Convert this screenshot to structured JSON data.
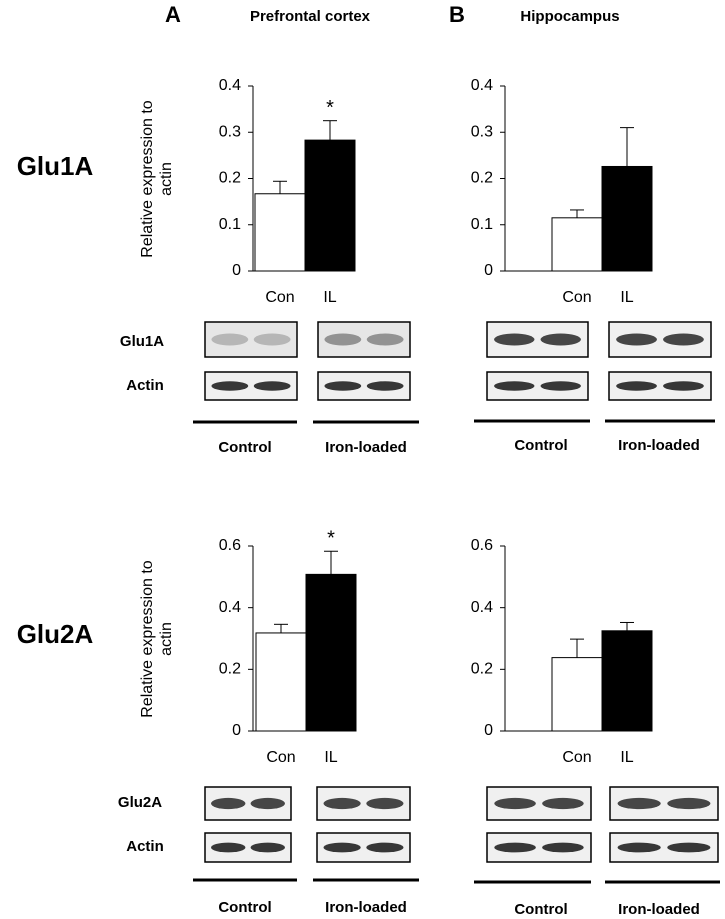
{
  "panels": [
    {
      "letter": "A",
      "title": "Prefrontal cortex"
    },
    {
      "letter": "B",
      "title": "Hippocampus"
    }
  ],
  "row_labels": [
    "Glu1A",
    "Glu2A"
  ],
  "blot_labels": [
    [
      "Glu1A",
      "Actin"
    ],
    [
      "Glu2A",
      "Actin"
    ]
  ],
  "group_labels": [
    [
      "Control",
      "Iron-loaded"
    ],
    [
      "Control",
      "Iron-loaded"
    ],
    [
      "Control",
      "Iron-loaded"
    ],
    [
      "Control",
      "Iron-loaded"
    ]
  ],
  "chart_data": [
    {
      "type": "bar",
      "ylabel": "Relative expression to actin",
      "categories": [
        "Con",
        "IL"
      ],
      "values": [
        0.167,
        0.283
      ],
      "errors": [
        0.027,
        0.042
      ],
      "colors": [
        "#ffffff",
        "#000000"
      ],
      "ylim": [
        0,
        0.4
      ],
      "yticks": [
        0,
        0.1,
        0.2,
        0.3,
        0.4
      ],
      "annotations": [
        {
          "text": "*",
          "x": "IL"
        }
      ]
    },
    {
      "type": "bar",
      "categories": [
        "Con",
        "IL"
      ],
      "values": [
        0.115,
        0.226
      ],
      "errors": [
        0.017,
        0.084
      ],
      "colors": [
        "#ffffff",
        "#000000"
      ],
      "ylim": [
        0,
        0.4
      ],
      "yticks": [
        0,
        0.1,
        0.2,
        0.3,
        0.4
      ]
    },
    {
      "type": "bar",
      "ylabel": "Relative expression to actin",
      "categories": [
        "Con",
        "IL"
      ],
      "values": [
        0.318,
        0.508
      ],
      "errors": [
        0.028,
        0.075
      ],
      "colors": [
        "#ffffff",
        "#000000"
      ],
      "ylim": [
        0,
        0.6
      ],
      "yticks": [
        0,
        0.2,
        0.4,
        0.6
      ],
      "annotations": [
        {
          "text": "*",
          "x": "IL"
        }
      ]
    },
    {
      "type": "bar",
      "categories": [
        "Con",
        "IL"
      ],
      "values": [
        0.238,
        0.325
      ],
      "errors": [
        0.06,
        0.027
      ],
      "colors": [
        "#ffffff",
        "#000000"
      ],
      "ylim": [
        0,
        0.6
      ],
      "yticks": [
        0,
        0.2,
        0.4,
        0.6
      ]
    }
  ]
}
